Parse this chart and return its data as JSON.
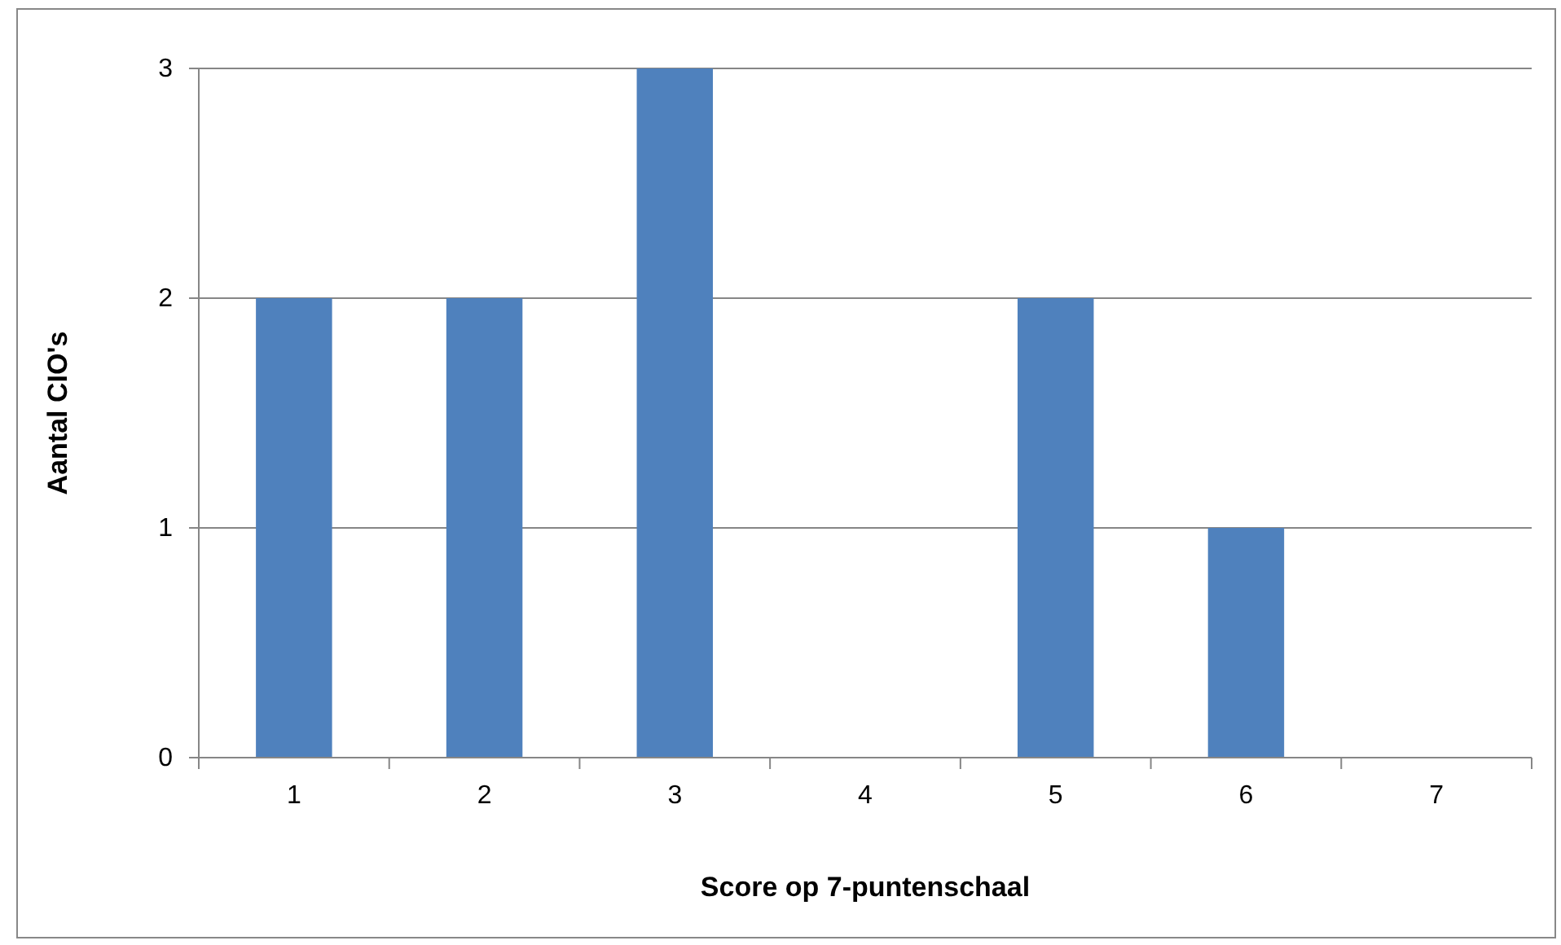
{
  "chart_data": {
    "type": "bar",
    "xlabel": "Score op 7-puntenschaal",
    "ylabel": "Aantal CIO's",
    "categories": [
      "1",
      "2",
      "3",
      "4",
      "5",
      "6",
      "7"
    ],
    "values": [
      2,
      2,
      3,
      0,
      2,
      1,
      0
    ],
    "color": "#4f81bd",
    "ylim": [
      0,
      3
    ],
    "yticks": [
      0,
      1,
      2,
      3
    ],
    "grid": "y"
  }
}
